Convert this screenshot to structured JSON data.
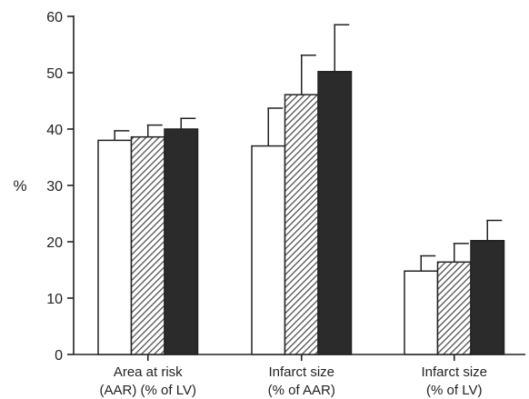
{
  "chart_data": {
    "type": "bar",
    "title": "",
    "xlabel": "",
    "ylabel": "%",
    "ylim": [
      0,
      60
    ],
    "yticks": [
      0,
      10,
      20,
      30,
      40,
      50,
      60
    ],
    "grid": false,
    "legend": "none",
    "categories": [
      [
        "Area at risk",
        "(AAR) (% of LV)"
      ],
      [
        "Infarct size",
        "(% of AAR)"
      ],
      [
        "Infarct size",
        "(% of LV)"
      ]
    ],
    "series": [
      {
        "fill": "open",
        "color": "#ffffff",
        "values": [
          38,
          37,
          14.8
        ],
        "errors": [
          1.7,
          6.7,
          2.7
        ]
      },
      {
        "fill": "hatched",
        "color": "#555555",
        "values": [
          38.6,
          46.1,
          16.4
        ],
        "errors": [
          2.1,
          7.0,
          3.3
        ]
      },
      {
        "fill": "solid",
        "color": "#2a2a2a",
        "values": [
          40,
          50.2,
          20.2
        ],
        "errors": [
          1.9,
          8.3,
          3.6
        ]
      }
    ]
  }
}
